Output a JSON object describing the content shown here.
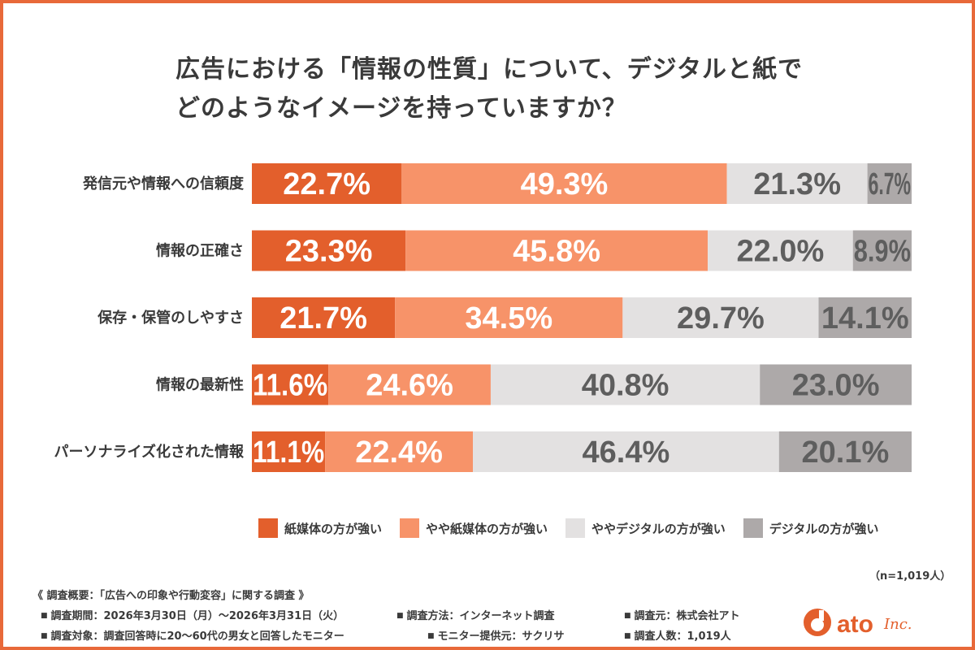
{
  "title": {
    "line1": "広告における「情報の性質」について、デジタルと紙で",
    "line2": "どのようなイメージを持っていますか？"
  },
  "colors": {
    "paper_strong": "#e35f2c",
    "paper_somewhat": "#f79369",
    "digital_somewhat": "#e3e1e1",
    "digital_strong": "#ada9a9",
    "value_text_dark": "#5e5e5e",
    "border": "#e8693a"
  },
  "chart_data": {
    "type": "bar",
    "orientation": "horizontal",
    "stacked": true,
    "unit": "%",
    "categories": [
      "発信元や情報への信頼度",
      "情報の正確さ",
      "保存・保管のしやすさ",
      "情報の最新性",
      "パーソナライズ化された情報"
    ],
    "series": [
      {
        "name": "紙媒体の方が強い",
        "values": [
          22.7,
          23.3,
          21.7,
          11.6,
          11.1
        ]
      },
      {
        "name": "やや紙媒体の方が強い",
        "values": [
          49.3,
          45.8,
          34.5,
          24.6,
          22.4
        ]
      },
      {
        "name": "ややデジタルの方が強い",
        "values": [
          21.3,
          22.0,
          29.7,
          40.8,
          46.4
        ]
      },
      {
        "name": "デジタルの方が強い",
        "values": [
          6.7,
          8.9,
          14.1,
          23.0,
          20.1
        ]
      }
    ],
    "labels": [
      [
        "22.7%",
        "49.3%",
        "21.3%",
        "6.7%"
      ],
      [
        "23.3%",
        "45.8%",
        "22.0%",
        "8.9%"
      ],
      [
        "21.7%",
        "34.5%",
        "29.7%",
        "14.1%"
      ],
      [
        "11.6%",
        "24.6%",
        "40.8%",
        "23.0%"
      ],
      [
        "11.1%",
        "22.4%",
        "46.4%",
        "20.1%"
      ]
    ],
    "xlim": [
      0,
      100
    ],
    "legend_position": "bottom"
  },
  "legend": {
    "items": [
      {
        "label": "紙媒体の方が強い",
        "color": "#e35f2c"
      },
      {
        "label": "やや紙媒体の方が強い",
        "color": "#f79369"
      },
      {
        "label": "ややデジタルの方が強い",
        "color": "#e3e1e1"
      },
      {
        "label": "デジタルの方が強い",
        "color": "#ada9a9"
      }
    ]
  },
  "sample_note": "（n=1,019人）",
  "footer": {
    "heading": "《 調査概要：「広告への印象や行動変容」に関する調査 》",
    "period": "調査期間：2026年3月30日（月）～2026年3月31日（火）",
    "method": "調査方法：インターネット調査",
    "source": "調査元：株式会社アト",
    "target": "調査対象：調査回答時に20～60代の男女と回答したモニター",
    "provider": "モニター提供元：サクリサ",
    "count": "調査人数：1,019人"
  },
  "logo": {
    "text": "ato",
    "suffix": "Inc."
  }
}
